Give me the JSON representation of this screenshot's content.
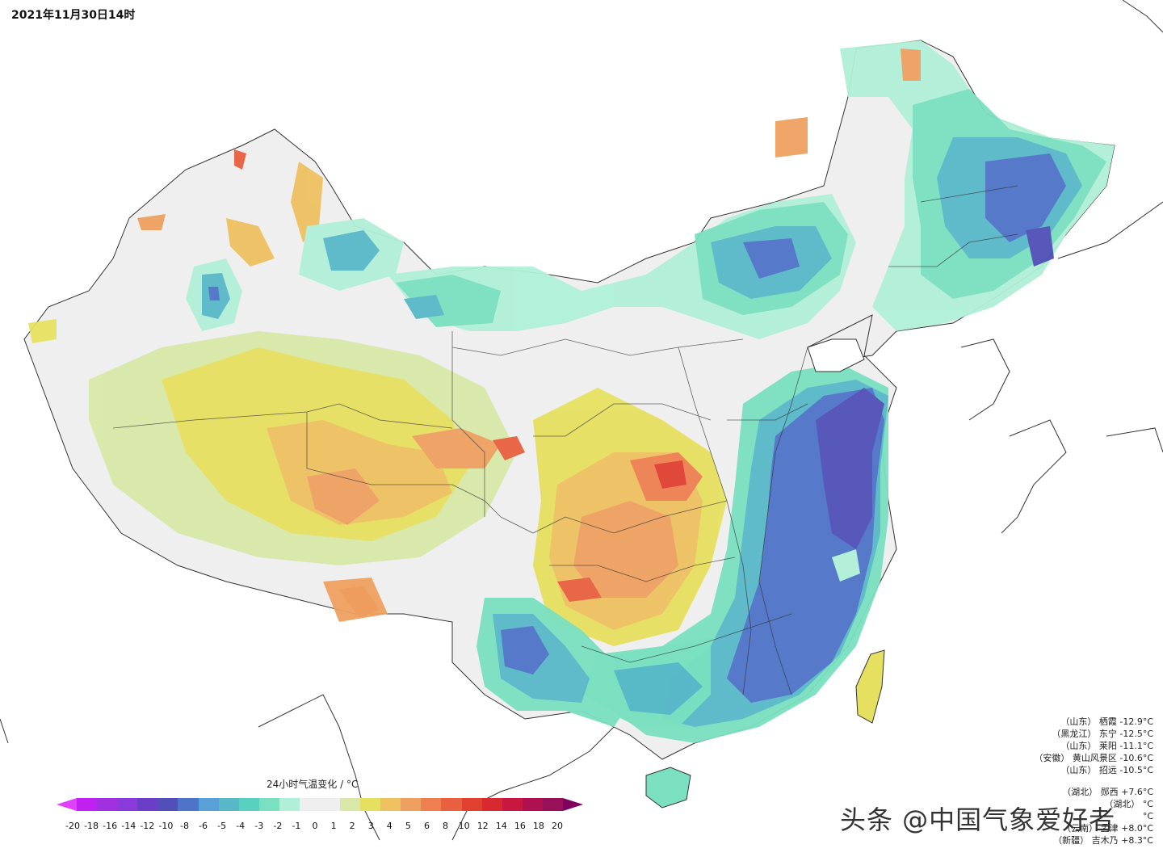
{
  "header": {
    "timestamp": "2021年11月30日14时"
  },
  "legend": {
    "title": "24小时气温变化 / °C",
    "ticks": [
      "-20",
      "-18",
      "-16",
      "-14",
      "-12",
      "-10",
      "-8",
      "-6",
      "-5",
      "-4",
      "-3",
      "-2",
      "-1",
      "0",
      "1",
      "2",
      "3",
      "4",
      "5",
      "6",
      "8",
      "10",
      "12",
      "14",
      "16",
      "18",
      "20"
    ],
    "colors": [
      "#e040fb",
      "#c020f0",
      "#a030e0",
      "#8a3ad8",
      "#6a3ec8",
      "#5050b8",
      "#4e73c8",
      "#5aa0d8",
      "#58b8c8",
      "#5ad0c0",
      "#7ae0c0",
      "#b0f0d8",
      "#efefef",
      "#efefef",
      "#d8e8a8",
      "#e6e060",
      "#eec060",
      "#eea060",
      "#ee8050",
      "#e86040",
      "#e04030",
      "#d82830",
      "#c81840",
      "#b01050",
      "#981058",
      "#800060"
    ]
  },
  "stations": {
    "drop": [
      {
        "province": "（山东）",
        "name": "栖霞",
        "value": "-12.9°C"
      },
      {
        "province": "（黑龙江）",
        "name": "东宁",
        "value": "-12.5°C"
      },
      {
        "province": "（山东）",
        "name": "莱阳",
        "value": "-11.1°C"
      },
      {
        "province": "（安徽）",
        "name": "黄山风景区",
        "value": "-10.6°C"
      },
      {
        "province": "（山东）",
        "name": "招远",
        "value": "-10.5°C"
      }
    ],
    "rise": [
      {
        "province": "（湖北）",
        "name": "郧西",
        "value": "+7.6°C"
      },
      {
        "province": "（湖北）",
        "name": "",
        "value": "°C"
      },
      {
        "province": "",
        "name": "",
        "value": "°C"
      },
      {
        "province": "（云南）",
        "name": "孟津",
        "value": "+8.0°C"
      },
      {
        "province": "（新疆）",
        "name": "吉木乃",
        "value": "+8.3°C"
      }
    ]
  },
  "watermark": "头条 @中国气象爱好者"
}
